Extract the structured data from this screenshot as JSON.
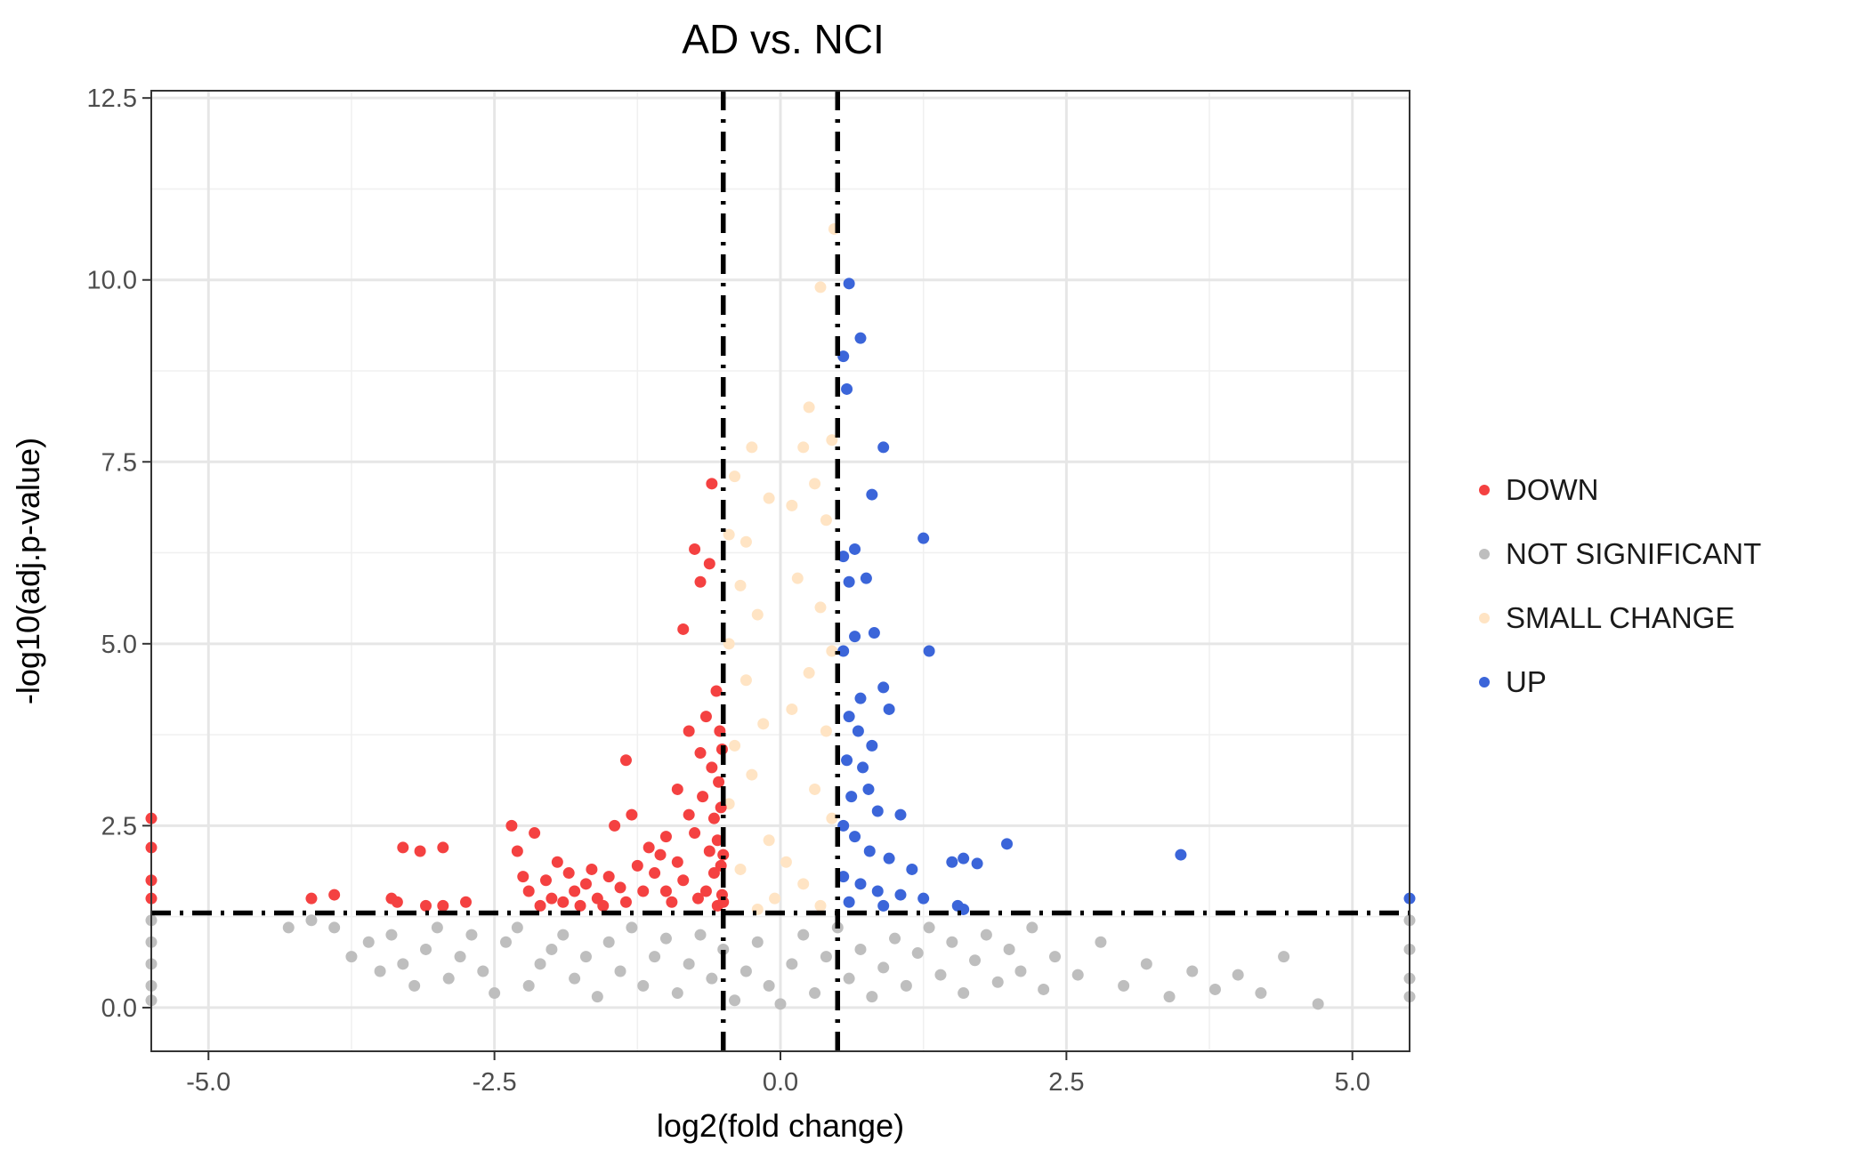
{
  "chart_data": {
    "type": "scatter",
    "title": "AD vs. NCI",
    "xlabel": "log2(fold change)",
    "ylabel": "-log10(adj.p-value)",
    "xlim": [
      -5.5,
      5.5
    ],
    "ylim": [
      -0.6,
      12.6
    ],
    "xticks": [
      -5.0,
      -2.5,
      0.0,
      2.5,
      5.0
    ],
    "xtick_labels": [
      "-5.0",
      "-2.5",
      "0.0",
      "2.5",
      "5.0"
    ],
    "yticks": [
      0.0,
      2.5,
      5.0,
      7.5,
      10.0,
      12.5
    ],
    "ytick_labels": [
      "0.0",
      "2.5",
      "5.0",
      "7.5",
      "10.0",
      "12.5"
    ],
    "grid": true,
    "legend_position": "right",
    "thresholds": {
      "x": [
        -0.5,
        0.5
      ],
      "y": 1.3
    },
    "series": [
      {
        "name": "DOWN",
        "color": "#f44141",
        "points": [
          [
            -5.5,
            2.6
          ],
          [
            -5.5,
            2.2
          ],
          [
            -5.5,
            1.75
          ],
          [
            -5.5,
            1.5
          ],
          [
            -4.1,
            1.5
          ],
          [
            -3.9,
            1.55
          ],
          [
            -3.4,
            1.5
          ],
          [
            -3.35,
            1.45
          ],
          [
            -3.3,
            2.2
          ],
          [
            -3.15,
            2.15
          ],
          [
            -3.1,
            1.4
          ],
          [
            -2.95,
            2.2
          ],
          [
            -2.95,
            1.4
          ],
          [
            -2.75,
            1.45
          ],
          [
            -2.35,
            2.5
          ],
          [
            -2.3,
            2.15
          ],
          [
            -2.25,
            1.8
          ],
          [
            -2.2,
            1.6
          ],
          [
            -2.15,
            2.4
          ],
          [
            -2.1,
            1.4
          ],
          [
            -2.05,
            1.75
          ],
          [
            -2.0,
            1.5
          ],
          [
            -1.95,
            2.0
          ],
          [
            -1.9,
            1.45
          ],
          [
            -1.85,
            1.85
          ],
          [
            -1.8,
            1.6
          ],
          [
            -1.75,
            1.4
          ],
          [
            -1.7,
            1.7
          ],
          [
            -1.65,
            1.9
          ],
          [
            -1.6,
            1.5
          ],
          [
            -1.55,
            1.4
          ],
          [
            -1.5,
            1.8
          ],
          [
            -1.45,
            2.5
          ],
          [
            -1.4,
            1.65
          ],
          [
            -1.35,
            3.4
          ],
          [
            -1.35,
            1.45
          ],
          [
            -1.3,
            2.65
          ],
          [
            -1.25,
            1.95
          ],
          [
            -1.2,
            1.6
          ],
          [
            -1.15,
            2.2
          ],
          [
            -1.1,
            1.85
          ],
          [
            -1.05,
            2.1
          ],
          [
            -1.0,
            2.35
          ],
          [
            -1.0,
            1.6
          ],
          [
            -0.95,
            1.45
          ],
          [
            -0.9,
            2.0
          ],
          [
            -0.9,
            3.0
          ],
          [
            -0.85,
            5.2
          ],
          [
            -0.85,
            1.75
          ],
          [
            -0.8,
            2.65
          ],
          [
            -0.8,
            3.8
          ],
          [
            -0.75,
            6.3
          ],
          [
            -0.75,
            2.4
          ],
          [
            -0.72,
            1.5
          ],
          [
            -0.7,
            3.5
          ],
          [
            -0.7,
            5.85
          ],
          [
            -0.68,
            2.9
          ],
          [
            -0.65,
            1.6
          ],
          [
            -0.65,
            4.0
          ],
          [
            -0.62,
            2.15
          ],
          [
            -0.62,
            6.1
          ],
          [
            -0.6,
            7.2
          ],
          [
            -0.6,
            3.3
          ],
          [
            -0.58,
            1.85
          ],
          [
            -0.58,
            2.6
          ],
          [
            -0.56,
            4.35
          ],
          [
            -0.55,
            1.4
          ],
          [
            -0.55,
            2.3
          ],
          [
            -0.54,
            3.1
          ],
          [
            -0.53,
            3.8
          ],
          [
            -0.52,
            1.95
          ],
          [
            -0.52,
            2.75
          ],
          [
            -0.51,
            1.55
          ],
          [
            -0.51,
            3.55
          ],
          [
            -0.5,
            2.1
          ],
          [
            -0.5,
            1.45
          ]
        ]
      },
      {
        "name": "NOT SIGNIFICANT",
        "color": "#bebebe",
        "points": [
          [
            -5.5,
            1.2
          ],
          [
            -5.5,
            0.9
          ],
          [
            -5.5,
            0.6
          ],
          [
            -5.5,
            0.3
          ],
          [
            -5.5,
            0.1
          ],
          [
            -4.3,
            1.1
          ],
          [
            -4.1,
            1.2
          ],
          [
            -3.9,
            1.1
          ],
          [
            -3.75,
            0.7
          ],
          [
            -3.6,
            0.9
          ],
          [
            -3.5,
            0.5
          ],
          [
            -3.4,
            1.0
          ],
          [
            -3.3,
            0.6
          ],
          [
            -3.2,
            0.3
          ],
          [
            -3.1,
            0.8
          ],
          [
            -3.0,
            1.1
          ],
          [
            -2.9,
            0.4
          ],
          [
            -2.8,
            0.7
          ],
          [
            -2.7,
            1.0
          ],
          [
            -2.6,
            0.5
          ],
          [
            -2.5,
            0.2
          ],
          [
            -2.4,
            0.9
          ],
          [
            -2.3,
            1.1
          ],
          [
            -2.2,
            0.3
          ],
          [
            -2.1,
            0.6
          ],
          [
            -2.0,
            0.8
          ],
          [
            -1.9,
            1.0
          ],
          [
            -1.8,
            0.4
          ],
          [
            -1.7,
            0.7
          ],
          [
            -1.6,
            0.15
          ],
          [
            -1.5,
            0.9
          ],
          [
            -1.4,
            0.5
          ],
          [
            -1.3,
            1.1
          ],
          [
            -1.2,
            0.3
          ],
          [
            -1.1,
            0.7
          ],
          [
            -1.0,
            0.95
          ],
          [
            -0.9,
            0.2
          ],
          [
            -0.8,
            0.6
          ],
          [
            -0.7,
            1.0
          ],
          [
            -0.6,
            0.4
          ],
          [
            -0.5,
            0.8
          ],
          [
            -0.4,
            0.1
          ],
          [
            -0.3,
            0.5
          ],
          [
            -0.2,
            0.9
          ],
          [
            -0.1,
            0.3
          ],
          [
            0.0,
            0.05
          ],
          [
            0.1,
            0.6
          ],
          [
            0.2,
            1.0
          ],
          [
            0.3,
            0.2
          ],
          [
            0.4,
            0.7
          ],
          [
            0.5,
            1.1
          ],
          [
            0.6,
            0.4
          ],
          [
            0.7,
            0.8
          ],
          [
            0.8,
            0.15
          ],
          [
            0.9,
            0.55
          ],
          [
            1.0,
            0.95
          ],
          [
            1.1,
            0.3
          ],
          [
            1.2,
            0.75
          ],
          [
            1.3,
            1.1
          ],
          [
            1.4,
            0.45
          ],
          [
            1.5,
            0.9
          ],
          [
            1.6,
            0.2
          ],
          [
            1.7,
            0.65
          ],
          [
            1.8,
            1.0
          ],
          [
            1.9,
            0.35
          ],
          [
            2.0,
            0.8
          ],
          [
            2.1,
            0.5
          ],
          [
            2.2,
            1.1
          ],
          [
            2.3,
            0.25
          ],
          [
            2.4,
            0.7
          ],
          [
            2.6,
            0.45
          ],
          [
            2.8,
            0.9
          ],
          [
            3.0,
            0.3
          ],
          [
            3.2,
            0.6
          ],
          [
            3.4,
            0.15
          ],
          [
            3.6,
            0.5
          ],
          [
            3.8,
            0.25
          ],
          [
            4.0,
            0.45
          ],
          [
            4.2,
            0.2
          ],
          [
            4.4,
            0.7
          ],
          [
            4.7,
            0.05
          ],
          [
            5.5,
            1.2
          ],
          [
            5.5,
            0.8
          ],
          [
            5.5,
            0.4
          ],
          [
            5.5,
            0.15
          ]
        ]
      },
      {
        "name": "SMALL CHANGE",
        "color": "#ffe4c4",
        "points": [
          [
            0.47,
            10.7
          ],
          [
            0.35,
            9.9
          ],
          [
            0.25,
            8.25
          ],
          [
            -0.25,
            7.7
          ],
          [
            -0.4,
            7.3
          ],
          [
            -0.1,
            7.0
          ],
          [
            0.2,
            7.7
          ],
          [
            0.45,
            7.8
          ],
          [
            0.3,
            7.2
          ],
          [
            -0.45,
            6.5
          ],
          [
            -0.3,
            6.4
          ],
          [
            0.4,
            6.7
          ],
          [
            0.1,
            6.9
          ],
          [
            -0.35,
            5.8
          ],
          [
            -0.2,
            5.4
          ],
          [
            0.35,
            5.5
          ],
          [
            0.15,
            5.9
          ],
          [
            -0.45,
            5.0
          ],
          [
            0.45,
            4.9
          ],
          [
            -0.3,
            4.5
          ],
          [
            0.25,
            4.6
          ],
          [
            -0.15,
            3.9
          ],
          [
            0.1,
            4.1
          ],
          [
            -0.4,
            3.6
          ],
          [
            0.4,
            3.8
          ],
          [
            -0.25,
            3.2
          ],
          [
            0.3,
            3.0
          ],
          [
            -0.45,
            2.8
          ],
          [
            0.45,
            2.6
          ],
          [
            -0.1,
            2.3
          ],
          [
            0.05,
            2.0
          ],
          [
            -0.35,
            1.9
          ],
          [
            0.2,
            1.7
          ],
          [
            -0.05,
            1.5
          ],
          [
            0.35,
            1.4
          ],
          [
            -0.2,
            1.35
          ]
        ]
      },
      {
        "name": "UP",
        "color": "#3b65d9",
        "points": [
          [
            0.6,
            9.95
          ],
          [
            0.7,
            9.2
          ],
          [
            0.55,
            8.95
          ],
          [
            0.58,
            8.5
          ],
          [
            0.9,
            7.7
          ],
          [
            0.8,
            7.05
          ],
          [
            1.25,
            6.45
          ],
          [
            0.65,
            6.3
          ],
          [
            0.55,
            6.2
          ],
          [
            1.3,
            4.9
          ],
          [
            0.75,
            5.9
          ],
          [
            0.6,
            5.85
          ],
          [
            0.82,
            5.15
          ],
          [
            0.65,
            5.1
          ],
          [
            0.55,
            4.9
          ],
          [
            0.9,
            4.4
          ],
          [
            0.7,
            4.25
          ],
          [
            0.95,
            4.1
          ],
          [
            0.6,
            4.0
          ],
          [
            0.68,
            3.8
          ],
          [
            0.8,
            3.6
          ],
          [
            0.58,
            3.4
          ],
          [
            0.72,
            3.3
          ],
          [
            0.77,
            3.0
          ],
          [
            0.62,
            2.9
          ],
          [
            0.85,
            2.7
          ],
          [
            1.05,
            2.65
          ],
          [
            0.55,
            2.5
          ],
          [
            0.65,
            2.35
          ],
          [
            0.78,
            2.15
          ],
          [
            0.95,
            2.05
          ],
          [
            1.15,
            1.9
          ],
          [
            1.5,
            2.0
          ],
          [
            1.6,
            2.05
          ],
          [
            1.72,
            1.98
          ],
          [
            1.98,
            2.25
          ],
          [
            3.5,
            2.1
          ],
          [
            0.55,
            1.8
          ],
          [
            0.7,
            1.7
          ],
          [
            0.85,
            1.6
          ],
          [
            1.05,
            1.55
          ],
          [
            1.25,
            1.5
          ],
          [
            0.6,
            1.45
          ],
          [
            0.9,
            1.4
          ],
          [
            1.55,
            1.4
          ],
          [
            1.6,
            1.35
          ],
          [
            5.5,
            1.5
          ]
        ]
      }
    ]
  }
}
